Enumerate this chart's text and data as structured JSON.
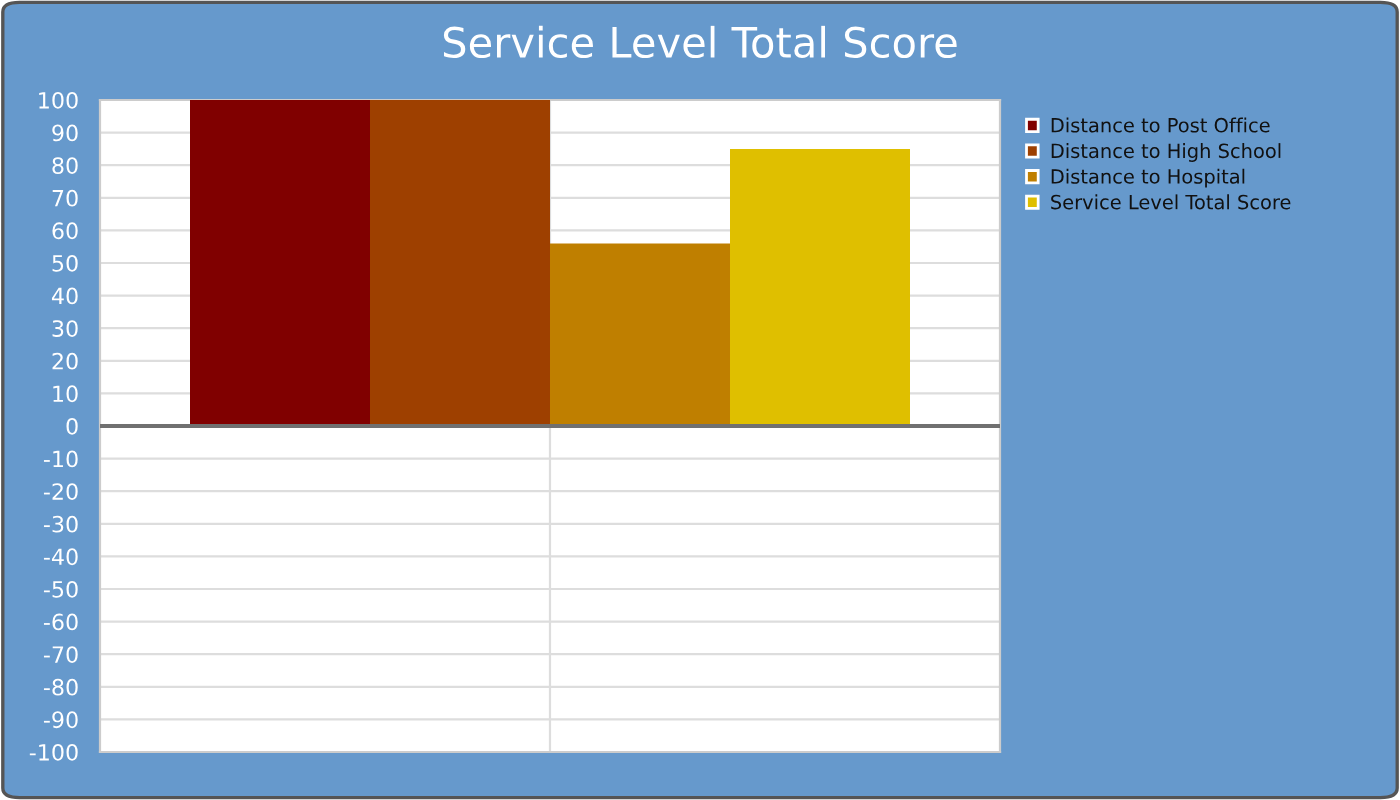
{
  "chart_data": {
    "type": "bar",
    "title": "Service Level Total Score",
    "categories": [
      null
    ],
    "series": [
      {
        "name": "Distance to Post Office",
        "color": "#800000",
        "values": [
          100
        ]
      },
      {
        "name": "Distance to High School",
        "color": "#9e4000",
        "values": [
          100
        ]
      },
      {
        "name": "Distance to Hospital",
        "color": "#bf7f00",
        "values": [
          56
        ]
      },
      {
        "name": "Service Level Total Score",
        "color": "#dfbf00",
        "values": [
          85
        ]
      }
    ],
    "ylim": [
      -100,
      100
    ],
    "yticks": [
      -100,
      -90,
      -80,
      -70,
      -60,
      -50,
      -40,
      -30,
      -20,
      -10,
      0,
      10,
      20,
      30,
      40,
      50,
      60,
      70,
      80,
      90,
      100
    ],
    "grid": true,
    "legend": "top right"
  }
}
